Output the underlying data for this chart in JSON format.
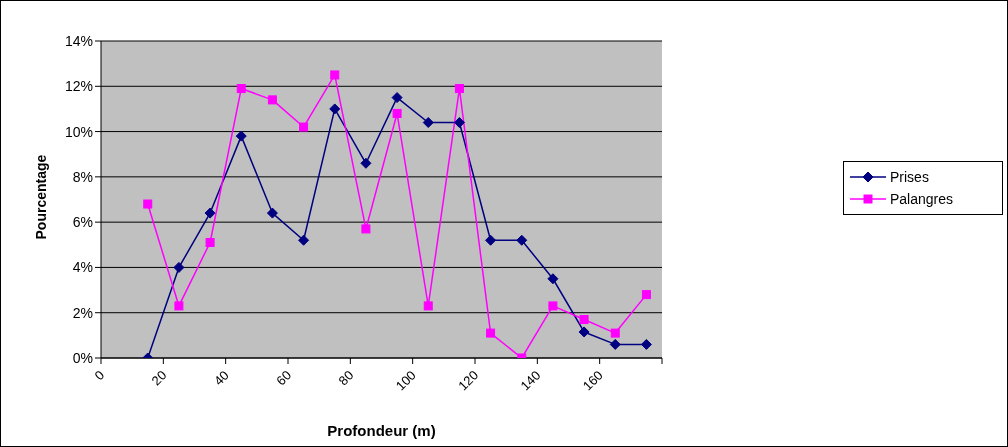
{
  "chart_data": {
    "type": "line",
    "xlabel": "Profondeur (m)",
    "ylabel": "Pourcentage",
    "x": [
      15,
      25,
      35,
      45,
      55,
      65,
      75,
      85,
      95,
      105,
      115,
      125,
      135,
      145,
      155,
      165,
      175
    ],
    "series": [
      {
        "name": "Prises",
        "color": "#000080",
        "marker": "diamond",
        "values": [
          0,
          4.0,
          6.4,
          9.8,
          6.4,
          5.2,
          11.0,
          8.6,
          11.5,
          10.4,
          10.4,
          5.2,
          5.2,
          3.5,
          1.15,
          0.6,
          0.6
        ]
      },
      {
        "name": "Palangres",
        "color": "#ff00ff",
        "marker": "square",
        "values": [
          6.8,
          2.3,
          5.1,
          11.9,
          11.4,
          10.2,
          12.5,
          5.7,
          10.8,
          2.3,
          11.9,
          1.1,
          0,
          2.3,
          1.7,
          1.1,
          2.8
        ]
      }
    ],
    "xlim": [
      0,
      180
    ],
    "xticks": [
      0,
      20,
      40,
      60,
      80,
      100,
      120,
      140,
      160,
      {
        "value": 180,
        "label": null
      }
    ],
    "ylim": [
      0,
      14
    ],
    "yticks": [
      {
        "value": 0,
        "label": "0%"
      },
      {
        "value": 2,
        "label": "2%"
      },
      {
        "value": 4,
        "label": "4%"
      },
      {
        "value": 6,
        "label": "6%"
      },
      {
        "value": 8,
        "label": "8%"
      },
      {
        "value": 10,
        "label": "10%"
      },
      {
        "value": 12,
        "label": "12%"
      },
      {
        "value": 14,
        "label": "14%"
      }
    ],
    "grid": "y",
    "legend": "right",
    "line_style": "solid"
  }
}
